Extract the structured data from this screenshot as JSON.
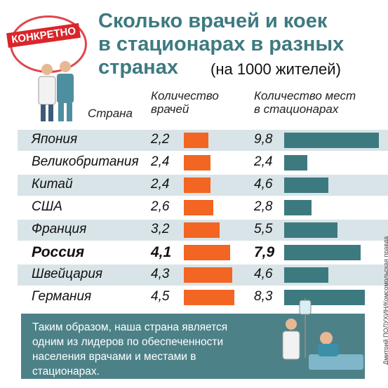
{
  "chart_data": {
    "type": "bar",
    "badge": "КОНКРЕТНО",
    "title": [
      "Сколько врачей и коек",
      "в стационарах в разных",
      "странах"
    ],
    "subtitle": "(на 1000 жителей)",
    "category_header": "Страна",
    "categories": [
      "Япония",
      "Великобритания",
      "Китай",
      "США",
      "Франция",
      "Россия",
      "Швейцария",
      "Германия"
    ],
    "series": [
      {
        "name": "Количество врачей",
        "color": "#f26522",
        "values": [
          2.2,
          2.4,
          2.4,
          2.6,
          3.2,
          4.1,
          4.3,
          4.5
        ],
        "value_labels": [
          "2,2",
          "2,4",
          "2,4",
          "2,6",
          "3,2",
          "4,1",
          "4,3",
          "4,5"
        ]
      },
      {
        "name": "Количество мест в стационарах",
        "color": "#3d7a80",
        "values": [
          9.8,
          2.4,
          4.6,
          2.8,
          5.5,
          7.9,
          4.6,
          8.3
        ],
        "value_labels": [
          "9,8",
          "2,4",
          "4,6",
          "2,8",
          "5,5",
          "7,9",
          "4,6",
          "8,3"
        ]
      }
    ],
    "stripe_color": "#d8e4e8",
    "note": "Таким образом, наша страна является одним из лидеров по обеспеченности населения врачами и местами в стационарах.",
    "credit": "Дмитрий ПОЛУХИН/Комсомольская правда"
  }
}
